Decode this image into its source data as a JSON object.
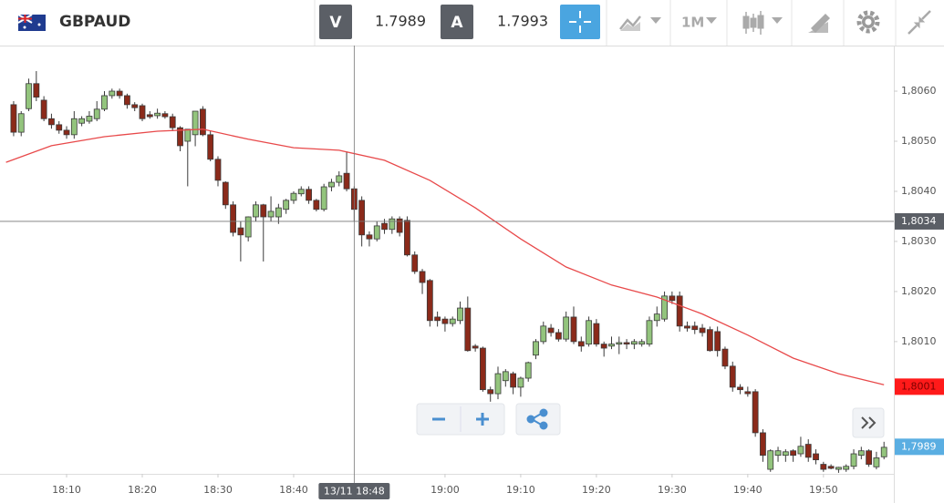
{
  "toolbar": {
    "symbol": "GBPAUD",
    "bid_label": "V",
    "bid": "1.7989",
    "ask_label": "A",
    "ask": "1.7993",
    "timeframe": "1M"
  },
  "chart_data": {
    "type": "candlestick",
    "x": [
      1083,
      1084,
      1085,
      1086,
      1087,
      1088,
      1089,
      1090,
      1091,
      1092,
      1093,
      1094,
      1095,
      1096,
      1097,
      1098,
      1099,
      1100,
      1101,
      1102,
      1103,
      1104,
      1105,
      1106,
      1107,
      1108,
      1109,
      1110,
      1111,
      1112,
      1113,
      1114,
      1115,
      1116,
      1117,
      1118,
      1119,
      1120,
      1121,
      1122,
      1123,
      1124,
      1125,
      1126,
      1127,
      1128,
      1129,
      1130,
      1131,
      1132,
      1133,
      1134,
      1135,
      1136,
      1137,
      1138,
      1139,
      1140,
      1141,
      1142,
      1143,
      1144,
      1145,
      1146,
      1147,
      1148,
      1149,
      1150,
      1151,
      1152,
      1153,
      1154,
      1155,
      1156,
      1157,
      1158,
      1159,
      1160,
      1161,
      1162,
      1163,
      1164,
      1165,
      1166,
      1167,
      1168,
      1169,
      1170,
      1171,
      1172,
      1173,
      1174,
      1175,
      1176,
      1177,
      1178,
      1179,
      1180,
      1181,
      1182,
      1183,
      1184,
      1185,
      1186,
      1187,
      1188,
      1189,
      1190,
      1191,
      1192,
      1193,
      1194,
      1195,
      1196,
      1197,
      1198
    ],
    "open": [
      1.80573,
      1.80518,
      1.80565,
      1.80615,
      1.80582,
      1.80545,
      1.80533,
      1.80522,
      1.80513,
      1.80536,
      1.8054,
      1.80545,
      1.80564,
      1.80591,
      1.806,
      1.80591,
      1.80573,
      1.80571,
      1.80553,
      1.80551,
      1.80555,
      1.80549,
      1.80527,
      1.805,
      1.80513,
      1.80564,
      1.80513,
      1.80464,
      1.80418,
      1.80373,
      1.80327,
      1.80309,
      1.80349,
      1.80373,
      1.80349,
      1.80349,
      1.80364,
      1.80382,
      1.80395,
      1.80404,
      1.80382,
      1.80364,
      1.80409,
      1.80418,
      1.80436,
      1.80405,
      1.80382,
      1.80313,
      1.80305,
      1.80336,
      1.80324,
      1.80345,
      1.80342,
      1.80273,
      1.8024,
      1.80222,
      1.80149,
      1.80145,
      1.80136,
      1.80142,
      1.80167,
      1.80091,
      1.80087,
      1.80004,
      1.79996,
      1.80022,
      1.80036,
      1.80009,
      1.80027,
      1.80073,
      1.801,
      1.80127,
      1.80118,
      1.80105,
      1.80149,
      1.801,
      1.80095,
      1.80136,
      1.80095,
      1.80091,
      1.80095,
      1.80098,
      1.80095,
      1.80095,
      1.80095,
      1.80142,
      1.80145,
      1.80191,
      1.80191,
      1.80131,
      1.80131,
      1.80127,
      1.80124,
      1.8012,
      1.80085,
      1.80051,
      1.80009,
      1.8,
      1.8,
      1.79918,
      1.79845,
      1.79873,
      1.79873,
      1.79882,
      1.79876,
      1.79895,
      1.79876,
      1.79855,
      1.79851,
      1.79845,
      1.79845,
      1.79851,
      1.79873,
      1.79882,
      1.7985,
      1.7987
    ],
    "high": [
      1.8058,
      1.8056,
      1.80625,
      1.8064,
      1.8059,
      1.80555,
      1.8054,
      1.8053,
      1.8056,
      1.8055,
      1.8056,
      1.8058,
      1.806,
      1.80605,
      1.80605,
      1.80595,
      1.80578,
      1.80575,
      1.8056,
      1.80565,
      1.8056,
      1.80555,
      1.8053,
      1.8052,
      1.8056,
      1.8057,
      1.8052,
      1.8047,
      1.8042,
      1.8038,
      1.8034,
      1.8035,
      1.8038,
      1.80375,
      1.8039,
      1.80375,
      1.80385,
      1.804,
      1.8041,
      1.8041,
      1.80385,
      1.80415,
      1.80425,
      1.8044,
      1.8048,
      1.8041,
      1.8039,
      1.8032,
      1.8034,
      1.80345,
      1.8035,
      1.8035,
      1.8035,
      1.8028,
      1.80245,
      1.80225,
      1.8016,
      1.8015,
      1.8015,
      1.8018,
      1.8019,
      1.80095,
      1.8009,
      1.8001,
      1.8005,
      1.80045,
      1.8004,
      1.8003,
      1.8006,
      1.80105,
      1.8014,
      1.80135,
      1.80125,
      1.8016,
      1.8017,
      1.8011,
      1.8015,
      1.80145,
      1.801,
      1.8011,
      1.8011,
      1.80105,
      1.80105,
      1.80105,
      1.8015,
      1.8017,
      1.802,
      1.802,
      1.802,
      1.8014,
      1.8014,
      1.80135,
      1.8013,
      1.8013,
      1.8009,
      1.8006,
      1.80015,
      1.8001,
      1.80005,
      1.79925,
      1.79885,
      1.7989,
      1.79885,
      1.79885,
      1.7991,
      1.79905,
      1.79885,
      1.7986,
      1.79855,
      1.7985,
      1.79855,
      1.79885,
      1.7989,
      1.79885,
      1.7988,
      1.799
    ],
    "low": [
      1.8051,
      1.8051,
      1.8056,
      1.8058,
      1.8054,
      1.80525,
      1.80515,
      1.80505,
      1.80505,
      1.8053,
      1.80535,
      1.8054,
      1.8056,
      1.80585,
      1.80585,
      1.80565,
      1.8056,
      1.8054,
      1.80545,
      1.80545,
      1.80545,
      1.8052,
      1.8048,
      1.8041,
      1.8049,
      1.8051,
      1.8046,
      1.8041,
      1.80365,
      1.8031,
      1.8026,
      1.803,
      1.8034,
      1.8026,
      1.8034,
      1.80335,
      1.80355,
      1.80375,
      1.8039,
      1.80375,
      1.8036,
      1.8036,
      1.804,
      1.8041,
      1.804,
      1.8034,
      1.8029,
      1.8029,
      1.803,
      1.80315,
      1.80315,
      1.8031,
      1.8027,
      1.80235,
      1.80195,
      1.8013,
      1.8013,
      1.8012,
      1.8013,
      1.80135,
      1.8008,
      1.8008,
      1.8,
      1.7998,
      1.79985,
      1.8001,
      1.79995,
      1.7999,
      1.8002,
      1.80065,
      1.80095,
      1.8011,
      1.801,
      1.801,
      1.80095,
      1.8008,
      1.8009,
      1.8009,
      1.8007,
      1.80085,
      1.80075,
      1.80085,
      1.80085,
      1.8009,
      1.8009,
      1.8013,
      1.8014,
      1.80175,
      1.8012,
      1.8012,
      1.80115,
      1.8011,
      1.8008,
      1.8007,
      1.80045,
      1.8,
      1.79995,
      1.7999,
      1.7991,
      1.7986,
      1.7984,
      1.7986,
      1.7986,
      1.7986,
      1.7987,
      1.7986,
      1.79855,
      1.7984,
      1.79845,
      1.79838,
      1.7984,
      1.79845,
      1.79865,
      1.7985,
      1.79845,
      1.79865
    ],
    "close": [
      1.80518,
      1.80555,
      1.80615,
      1.80588,
      1.80545,
      1.80533,
      1.80522,
      1.80513,
      1.80545,
      1.80545,
      1.8055,
      1.80564,
      1.80591,
      1.806,
      1.80591,
      1.80573,
      1.80567,
      1.80545,
      1.80549,
      1.80556,
      1.80549,
      1.80527,
      1.80491,
      1.80524,
      1.8056,
      1.80513,
      1.80464,
      1.80422,
      1.80373,
      1.80318,
      1.80313,
      1.80349,
      1.80373,
      1.80349,
      1.8036,
      1.80367,
      1.80382,
      1.80396,
      1.80404,
      1.80382,
      1.80364,
      1.80409,
      1.80418,
      1.80431,
      1.80405,
      1.80364,
      1.80313,
      1.80305,
      1.80331,
      1.80324,
      1.80345,
      1.80318,
      1.80273,
      1.8024,
      1.80218,
      1.80142,
      1.80142,
      1.80136,
      1.80145,
      1.80167,
      1.80082,
      1.80087,
      1.80004,
      1.79996,
      1.80036,
      1.8004,
      1.80009,
      1.80027,
      1.80058,
      1.801,
      1.80131,
      1.80118,
      1.80105,
      1.80149,
      1.801,
      1.80091,
      1.80142,
      1.80095,
      1.80087,
      1.80095,
      1.80098,
      1.80095,
      1.801,
      1.801,
      1.80142,
      1.80155,
      1.80191,
      1.80182,
      1.80131,
      1.80127,
      1.80124,
      1.80118,
      1.80082,
      1.80082,
      1.80051,
      1.80009,
      1.80004,
      1.79996,
      1.79918,
      1.79873,
      1.79882,
      1.79882,
      1.7988,
      1.79873,
      1.79891,
      1.79869,
      1.79864,
      1.79845,
      1.79847,
      1.79849,
      1.79851,
      1.79876,
      1.79882,
      1.79855,
      1.79868,
      1.79889
    ],
    "up_color": "#93c47d",
    "down_color": "#8b2a1a",
    "ma": {
      "color": "#e8494a",
      "x": [
        1082,
        1088,
        1095,
        1102,
        1108,
        1114,
        1120,
        1126,
        1132,
        1138,
        1144,
        1150,
        1156,
        1162,
        1168,
        1174,
        1180,
        1186,
        1192,
        1198
      ],
      "values": [
        1.80458,
        1.80491,
        1.80509,
        1.8052,
        1.80524,
        1.80504,
        1.80487,
        1.80482,
        1.80462,
        1.80422,
        1.80367,
        1.80305,
        1.80249,
        1.80213,
        1.80189,
        1.80155,
        1.80113,
        1.80067,
        1.80036,
        1.80014
      ],
      "value_label": {
        "value": 1.8001,
        "label": "1,8001"
      }
    },
    "last_price": {
      "value": 1.7989,
      "label": "1,7989",
      "color": "#5aaee2"
    },
    "crosshair": {
      "x": {
        "value": 1128,
        "label": "13/11 18:48"
      },
      "y": {
        "value": 1.8034,
        "label": "1,8034"
      }
    },
    "xlim": [
      1081.2,
      1199.3
    ],
    "ylim": [
      1.79836,
      1.80691
    ],
    "xticks": [
      {
        "value": 1090,
        "label": "18:10"
      },
      {
        "value": 1100,
        "label": "18:20"
      },
      {
        "value": 1110,
        "label": "18:30"
      },
      {
        "value": 1120,
        "label": "18:40"
      },
      {
        "value": 1140,
        "label": "19:00"
      },
      {
        "value": 1150,
        "label": "19:10"
      },
      {
        "value": 1160,
        "label": "19:20"
      },
      {
        "value": 1170,
        "label": "19:30"
      },
      {
        "value": 1180,
        "label": "19:40"
      },
      {
        "value": 1190,
        "label": "19:50"
      }
    ],
    "yticks": [
      {
        "value": 1.806,
        "label": "1,8060"
      },
      {
        "value": 1.805,
        "label": "1,8050"
      },
      {
        "value": 1.804,
        "label": "1,8040"
      },
      {
        "value": 1.803,
        "label": "1,8030"
      },
      {
        "value": 1.802,
        "label": "1,8020"
      },
      {
        "value": 1.801,
        "label": "1,8010"
      }
    ],
    "grid": false
  }
}
